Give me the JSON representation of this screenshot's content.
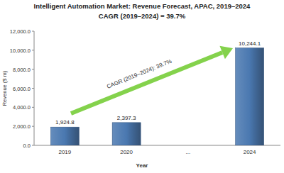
{
  "chart_data": {
    "type": "bar",
    "title": "Intelligent Automation Market: Revenue Forecast, APAC, 2019–2024",
    "subtitle": "CAGR (2019–2024) = 39.7%",
    "x_label": "Year",
    "y_label": "Revenue ($ m)",
    "annotations": [
      "CAGR (2019–2024): 39.7%"
    ],
    "categories": [
      "2019",
      "2020",
      "...",
      "2024"
    ],
    "values": [
      1924.8,
      2397.3,
      null,
      10244.1
    ],
    "value_labels": [
      "1,924.8",
      "2,397.3",
      null,
      "10,244.1"
    ],
    "color": "#4a78b0",
    "ylim": [
      0,
      12000
    ],
    "yticks": [
      {
        "value": 0,
        "label": "0.0"
      },
      {
        "value": 2000,
        "label": "2,000.0"
      },
      {
        "value": 4000,
        "label": "4,000.0"
      },
      {
        "value": 6000,
        "label": "6,000.0"
      },
      {
        "value": 8000,
        "label": "8,000.0"
      },
      {
        "value": 10000,
        "label": "10,000.0"
      },
      {
        "value": 12000,
        "label": "12,000.0"
      }
    ],
    "grid": false,
    "data_labels": true
  }
}
